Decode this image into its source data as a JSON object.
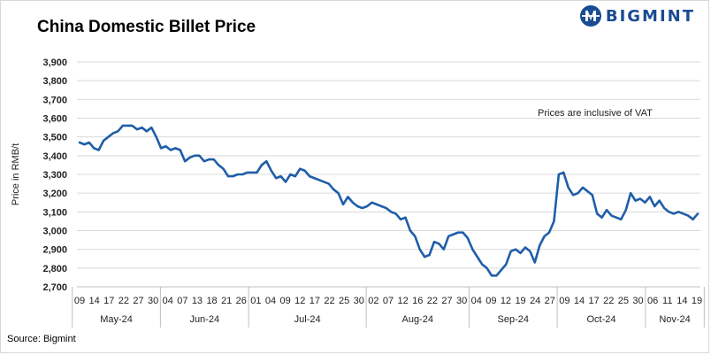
{
  "header": {
    "title": "China Domestic Billet Price",
    "brand": "BIGMINT",
    "brand_color": "#1a4c93",
    "logo_icon": "bigmint-globe-icon"
  },
  "footer": {
    "source": "Source: Bigmint"
  },
  "chart_data": {
    "type": "line",
    "title": "China Domestic Billet Price",
    "ylabel": "Price in RMB/t",
    "xlabel": "",
    "ylim": [
      2700,
      3900
    ],
    "y_ticks": [
      2700,
      2800,
      2900,
      3000,
      3100,
      3200,
      3300,
      3400,
      3500,
      3600,
      3700,
      3800,
      3900
    ],
    "y_tick_labels": [
      "2,700",
      "2,800",
      "2,900",
      "3,000",
      "3,100",
      "3,200",
      "3,300",
      "3,400",
      "3,500",
      "3,600",
      "3,700",
      "3,800",
      "3,900"
    ],
    "grid": true,
    "line_color": "#1f5ea8",
    "annotation": "Prices are inclusive of VAT",
    "x_tick_labels": [
      "09",
      "14",
      "17",
      "22",
      "27",
      "30",
      "04",
      "07",
      "13",
      "18",
      "21",
      "26",
      "01",
      "04",
      "09",
      "12",
      "17",
      "22",
      "25",
      "30",
      "02",
      "07",
      "12",
      "16",
      "22",
      "27",
      "30",
      "04",
      "09",
      "12",
      "19",
      "24",
      "27",
      "09",
      "14",
      "17",
      "22",
      "25",
      "30",
      "06",
      "11",
      "14",
      "19"
    ],
    "months": [
      {
        "label": "May-24",
        "start": 0,
        "end": 5
      },
      {
        "label": "Jun-24",
        "start": 6,
        "end": 11
      },
      {
        "label": "Jul-24",
        "start": 12,
        "end": 19
      },
      {
        "label": "Aug-24",
        "start": 20,
        "end": 26
      },
      {
        "label": "Sep-24",
        "start": 27,
        "end": 32
      },
      {
        "label": "Oct-24",
        "start": 33,
        "end": 38
      },
      {
        "label": "Nov-24",
        "start": 39,
        "end": 42
      }
    ],
    "series": [
      {
        "name": "China Domestic Billet Price",
        "values": [
          3470,
          3460,
          3470,
          3440,
          3430,
          3480,
          3500,
          3520,
          3530,
          3560,
          3560,
          3560,
          3540,
          3550,
          3530,
          3550,
          3500,
          3440,
          3450,
          3430,
          3440,
          3430,
          3370,
          3390,
          3400,
          3400,
          3370,
          3380,
          3380,
          3350,
          3330,
          3290,
          3290,
          3300,
          3300,
          3310,
          3310,
          3310,
          3350,
          3370,
          3320,
          3280,
          3290,
          3260,
          3300,
          3290,
          3330,
          3320,
          3290,
          3280,
          3270,
          3260,
          3250,
          3220,
          3200,
          3140,
          3180,
          3150,
          3130,
          3120,
          3130,
          3150,
          3140,
          3130,
          3120,
          3100,
          3090,
          3060,
          3070,
          3000,
          2970,
          2900,
          2860,
          2870,
          2940,
          2930,
          2900,
          2970,
          2980,
          2990,
          2990,
          2960,
          2900,
          2860,
          2820,
          2800,
          2760,
          2760,
          2790,
          2820,
          2890,
          2900,
          2880,
          2910,
          2890,
          2830,
          2920,
          2970,
          2990,
          3050,
          3300,
          3310,
          3230,
          3190,
          3200,
          3230,
          3210,
          3190,
          3090,
          3070,
          3110,
          3080,
          3070,
          3060,
          3110,
          3200,
          3160,
          3170,
          3150,
          3180,
          3130,
          3160,
          3120,
          3100,
          3090,
          3100,
          3090,
          3080,
          3060,
          3090
        ]
      }
    ]
  }
}
